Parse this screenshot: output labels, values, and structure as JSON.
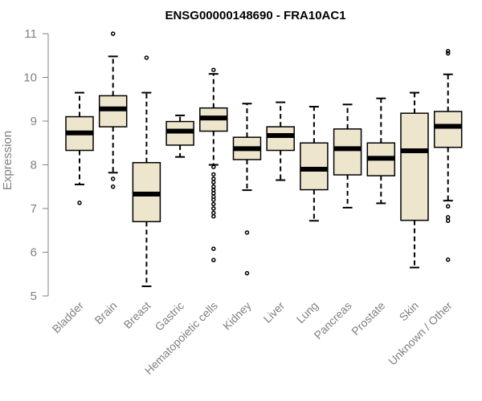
{
  "chart_data": {
    "type": "boxplot",
    "title": "ENSG00000148690 - FRA10AC1",
    "xlabel": "",
    "ylabel": "Expression",
    "ylim": [
      5,
      11
    ],
    "yticks": [
      5,
      6,
      7,
      8,
      9,
      10,
      11
    ],
    "grid": false,
    "colors": {
      "box_fill": "#ede6cc",
      "stroke": "#000000",
      "axis": "#808080"
    },
    "categories": [
      "Bladder",
      "Brain",
      "Breast",
      "Gastric",
      "Hematopoietic cells",
      "Kidney",
      "Liver",
      "Lung",
      "Pancreas",
      "Prostate",
      "Skin",
      "Unknown / Other"
    ],
    "boxes": [
      {
        "name": "Bladder",
        "whisker_low": 7.55,
        "q1": 8.33,
        "median": 8.73,
        "q3": 9.1,
        "whisker_high": 9.65,
        "outliers": [
          7.13
        ]
      },
      {
        "name": "Brain",
        "whisker_low": 7.82,
        "q1": 8.87,
        "median": 9.28,
        "q3": 9.58,
        "whisker_high": 10.48,
        "outliers": [
          11.0,
          7.68,
          7.5
        ]
      },
      {
        "name": "Breast",
        "whisker_low": 5.22,
        "q1": 6.7,
        "median": 7.33,
        "q3": 8.05,
        "whisker_high": 9.65,
        "outliers": [
          10.45
        ]
      },
      {
        "name": "Gastric",
        "whisker_low": 8.18,
        "q1": 8.45,
        "median": 8.77,
        "q3": 8.99,
        "whisker_high": 9.13,
        "outliers": []
      },
      {
        "name": "Hematopoietic cells",
        "whisker_low": 8.0,
        "q1": 8.77,
        "median": 9.07,
        "q3": 9.3,
        "whisker_high": 10.08,
        "outliers": [
          10.17,
          7.95,
          7.78,
          7.68,
          7.6,
          7.5,
          7.42,
          7.35,
          7.27,
          7.2,
          7.1,
          7.0,
          6.9,
          6.82,
          6.08,
          5.82
        ]
      },
      {
        "name": "Kidney",
        "whisker_low": 7.42,
        "q1": 8.12,
        "median": 8.37,
        "q3": 8.63,
        "whisker_high": 9.4,
        "outliers": [
          6.45,
          5.52
        ]
      },
      {
        "name": "Liver",
        "whisker_low": 7.65,
        "q1": 8.33,
        "median": 8.67,
        "q3": 8.87,
        "whisker_high": 9.43,
        "outliers": []
      },
      {
        "name": "Lung",
        "whisker_low": 6.72,
        "q1": 7.43,
        "median": 7.9,
        "q3": 8.5,
        "whisker_high": 9.33,
        "outliers": []
      },
      {
        "name": "Pancreas",
        "whisker_low": 7.02,
        "q1": 7.77,
        "median": 8.37,
        "q3": 8.82,
        "whisker_high": 9.38,
        "outliers": []
      },
      {
        "name": "Prostate",
        "whisker_low": 7.12,
        "q1": 7.75,
        "median": 8.15,
        "q3": 8.5,
        "whisker_high": 9.52,
        "outliers": []
      },
      {
        "name": "Skin",
        "whisker_low": 5.65,
        "q1": 6.73,
        "median": 8.32,
        "q3": 9.18,
        "whisker_high": 9.65,
        "outliers": []
      },
      {
        "name": "Unknown / Other",
        "whisker_low": 7.18,
        "q1": 8.4,
        "median": 8.88,
        "q3": 9.22,
        "whisker_high": 10.07,
        "outliers": [
          10.6,
          10.55,
          7.05,
          6.8,
          6.72,
          5.83
        ]
      }
    ]
  }
}
